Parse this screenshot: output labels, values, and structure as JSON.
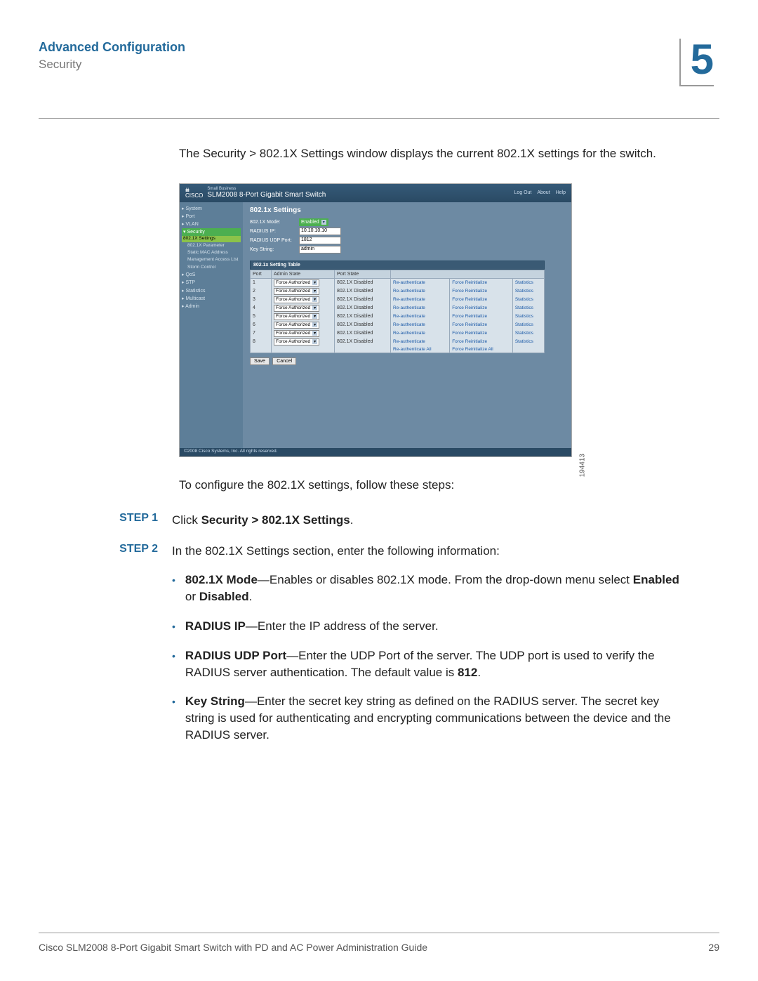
{
  "header": {
    "chapter_title": "Advanced Configuration",
    "section_title": "Security",
    "chapter_number": "5"
  },
  "intro": "The Security > 802.1X Settings window displays the current 802.1X settings for the switch.",
  "screenshot": {
    "brand_line1": "ılıılı",
    "brand_cisco": "CISCO",
    "brand_small": "Small Business",
    "switch_name": "SLM2008 8-Port Gigabit Smart Switch",
    "top_links": [
      "Log Out",
      "About",
      "Help"
    ],
    "nav": {
      "items": [
        "▸ System",
        "▸ Port",
        "▸ VLAN"
      ],
      "security_label": "▾ Security",
      "security_sub": [
        "802.1X Settings",
        "802.1X Parameter",
        "Static MAC Address",
        "Management Access List",
        "Storm Control"
      ],
      "items2": [
        "▸ QoS",
        "▸ STP",
        "▸ Statistics",
        "▸ Multicast",
        "▸ Admin"
      ]
    },
    "panel_title": "802.1x Settings",
    "form": {
      "mode_label": "802.1X Mode:",
      "mode_value": "Enabled",
      "ip_label": "RADIUS IP:",
      "ip_value": "10.10.10.10",
      "port_label": "RADIUS UDP Port:",
      "port_value": "1812",
      "key_label": "Key String:",
      "key_value": "admin"
    },
    "table_title": "802.1x Setting Table",
    "columns": [
      "Port",
      "Admin State",
      "Port State",
      "",
      "",
      ""
    ],
    "admin_state_value": "Force Authorized",
    "port_state_value": "802.1X Disabled",
    "reauth": "Re-authenticate",
    "reinit": "Force Reinitialize",
    "stats": "Statistics",
    "reauth_all": "Re-authenticate All",
    "reinit_all": "Force Reinitialize All",
    "ports": [
      "1",
      "2",
      "3",
      "4",
      "5",
      "6",
      "7",
      "8"
    ],
    "save": "Save",
    "cancel": "Cancel",
    "footer_copy": "©2008 Cisco Systems, Inc. All rights reserved.",
    "figure_id": "194413"
  },
  "config_intro": "To configure the 802.1X settings, follow these steps:",
  "steps": {
    "step1_label": "STEP 1",
    "step1_prefix": "Click ",
    "step1_bold": "Security > 802.1X Settings",
    "step1_suffix": ".",
    "step2_label": "STEP 2",
    "step2_text": "In the 802.1X Settings section, enter the following information:",
    "bullets": [
      {
        "bold": "802.1X Mode",
        "text1": "—Enables or disables 802.1X mode. From the drop-down menu select ",
        "bold2": "Enabled",
        "text2": " or ",
        "bold3": "Disabled",
        "text3": "."
      },
      {
        "bold": "RADIUS IP",
        "text1": "—Enter the IP address of the server."
      },
      {
        "bold": "RADIUS UDP Port",
        "text1": "—Enter the UDP Port of the server. The UDP port is used to verify the RADIUS server authentication. The default value is ",
        "bold2": "812",
        "text2": "."
      },
      {
        "bold": "Key String",
        "text1": "—Enter the secret key string as defined on the RADIUS server. The secret key string is used for authenticating and encrypting communications between the device and the RADIUS server."
      }
    ]
  },
  "footer": {
    "doc_title": "Cisco SLM2008 8-Port Gigabit Smart Switch with PD and AC Power Administration Guide",
    "page_no": "29"
  }
}
